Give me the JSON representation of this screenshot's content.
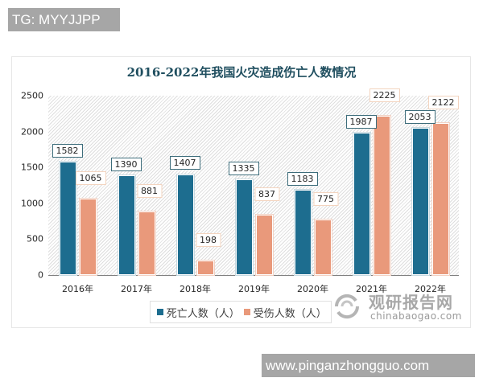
{
  "overlay": {
    "top_tag": "TG: MYYJJPP",
    "bottom_tag": "www.pinganzhongguo.com"
  },
  "watermark": {
    "cn": "观研报告网",
    "en": "chinabaogao.com",
    "icon": "chinabaogao-logo-icon"
  },
  "colors": {
    "deaths": "#1d6d8f",
    "injuries": "#e9997b",
    "title": "#1f4e5f"
  },
  "chart_data": {
    "type": "bar",
    "title": "2016-2022年我国火灾造成伤亡人数情况",
    "xlabel": "",
    "ylabel": "",
    "categories": [
      "2016年",
      "2017年",
      "2018年",
      "2019年",
      "2020年",
      "2021年",
      "2022年"
    ],
    "series": [
      {
        "name": "死亡人数（人）",
        "values": [
          1582,
          1390,
          1407,
          1335,
          1183,
          1987,
          2053
        ]
      },
      {
        "name": "受伤人数（人）",
        "values": [
          1065,
          881,
          198,
          837,
          775,
          2225,
          2122
        ]
      }
    ],
    "ylim": [
      0,
      2500
    ],
    "yticks": [
      "0",
      "500",
      "1000",
      "1500",
      "2000",
      "2500"
    ],
    "grid": false,
    "legend_position": "bottom",
    "data_labels": true
  }
}
